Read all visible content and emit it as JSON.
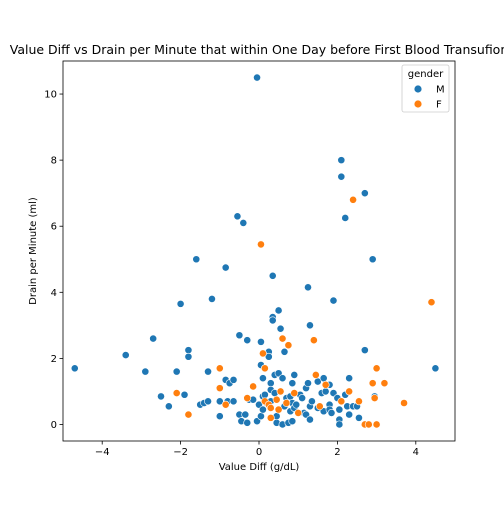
{
  "chart_data": {
    "type": "scatter",
    "title": "Value Diff vs Drain per Minute that within One Day before First Blood Transufion",
    "xlabel": "Value Diff (g/dL)",
    "ylabel": "Drain per Minute (ml)",
    "xlim": [
      -5.0,
      5.0
    ],
    "ylim": [
      -0.5,
      11.0
    ],
    "xticks": [
      -4,
      -2,
      0,
      2,
      4
    ],
    "yticks": [
      0,
      2,
      4,
      6,
      8,
      10
    ],
    "grid": false,
    "legend": {
      "title": "gender",
      "placement": "top-right"
    },
    "series": [
      {
        "name": "M",
        "color": "#1f77b4",
        "points": [
          [
            -4.7,
            1.7
          ],
          [
            -3.4,
            2.1
          ],
          [
            -2.9,
            1.6
          ],
          [
            -2.7,
            2.6
          ],
          [
            -2.5,
            0.85
          ],
          [
            -2.3,
            0.55
          ],
          [
            -2.1,
            1.6
          ],
          [
            -2.0,
            3.65
          ],
          [
            -1.9,
            0.9
          ],
          [
            -1.8,
            2.25
          ],
          [
            -1.8,
            2.05
          ],
          [
            -1.6,
            5.0
          ],
          [
            -1.5,
            0.6
          ],
          [
            -1.4,
            0.65
          ],
          [
            -1.3,
            0.7
          ],
          [
            -1.3,
            1.6
          ],
          [
            -1.2,
            3.8
          ],
          [
            -1.0,
            0.7
          ],
          [
            -1.0,
            0.25
          ],
          [
            -0.85,
            4.75
          ],
          [
            -0.85,
            1.35
          ],
          [
            -0.8,
            0.7
          ],
          [
            -0.75,
            1.25
          ],
          [
            -0.65,
            1.35
          ],
          [
            -0.65,
            0.7
          ],
          [
            -0.55,
            6.3
          ],
          [
            -0.5,
            2.7
          ],
          [
            -0.5,
            0.3
          ],
          [
            -0.45,
            0.1
          ],
          [
            -0.4,
            6.1
          ],
          [
            -0.35,
            0.3
          ],
          [
            -0.3,
            2.55
          ],
          [
            -0.3,
            0.05
          ],
          [
            -0.25,
            0.75
          ],
          [
            -0.15,
            0.75
          ],
          [
            -0.05,
            10.5
          ],
          [
            -0.05,
            0.1
          ],
          [
            0.0,
            0.6
          ],
          [
            0.05,
            2.5
          ],
          [
            0.05,
            1.8
          ],
          [
            0.05,
            0.25
          ],
          [
            0.1,
            1.4
          ],
          [
            0.1,
            0.85
          ],
          [
            0.1,
            0.45
          ],
          [
            0.15,
            0.9
          ],
          [
            0.2,
            0.65
          ],
          [
            0.25,
            2.2
          ],
          [
            0.25,
            2.05
          ],
          [
            0.3,
            1.25
          ],
          [
            0.3,
            1.05
          ],
          [
            0.3,
            0.7
          ],
          [
            0.35,
            4.5
          ],
          [
            0.35,
            3.25
          ],
          [
            0.35,
            3.15
          ],
          [
            0.4,
            1.5
          ],
          [
            0.4,
            0.95
          ],
          [
            0.45,
            0.05
          ],
          [
            0.45,
            0.25
          ],
          [
            0.5,
            3.45
          ],
          [
            0.5,
            1.55
          ],
          [
            0.55,
            2.9
          ],
          [
            0.6,
            0.0
          ],
          [
            0.6,
            1.4
          ],
          [
            0.65,
            2.2
          ],
          [
            0.65,
            0.55
          ],
          [
            0.7,
            0.8
          ],
          [
            0.75,
            0.05
          ],
          [
            0.8,
            0.85
          ],
          [
            0.8,
            0.4
          ],
          [
            0.85,
            0.65
          ],
          [
            0.85,
            1.25
          ],
          [
            0.85,
            0.1
          ],
          [
            0.9,
            1.5
          ],
          [
            0.9,
            0.5
          ],
          [
            0.95,
            0.6
          ],
          [
            1.05,
            0.9
          ],
          [
            1.1,
            0.8
          ],
          [
            1.15,
            0.35
          ],
          [
            1.2,
            1.1
          ],
          [
            1.2,
            0.3
          ],
          [
            1.25,
            4.15
          ],
          [
            1.25,
            1.25
          ],
          [
            1.3,
            3.0
          ],
          [
            1.3,
            0.55
          ],
          [
            1.3,
            0.15
          ],
          [
            1.35,
            0.7
          ],
          [
            1.5,
            1.3
          ],
          [
            1.5,
            0.5
          ],
          [
            1.6,
            0.95
          ],
          [
            1.65,
            1.4
          ],
          [
            1.65,
            0.4
          ],
          [
            1.7,
            1.0
          ],
          [
            1.8,
            1.2
          ],
          [
            1.8,
            0.6
          ],
          [
            1.8,
            0.45
          ],
          [
            1.85,
            0.35
          ],
          [
            1.9,
            3.75
          ],
          [
            1.9,
            0.95
          ],
          [
            2.0,
            0.8
          ],
          [
            2.05,
            0.45
          ],
          [
            2.05,
            0.15
          ],
          [
            2.05,
            0.0
          ],
          [
            2.1,
            8.0
          ],
          [
            2.1,
            7.5
          ],
          [
            2.2,
            6.25
          ],
          [
            2.2,
            0.9
          ],
          [
            2.25,
            0.55
          ],
          [
            2.3,
            1.4
          ],
          [
            2.3,
            0.3
          ],
          [
            2.4,
            0.55
          ],
          [
            2.5,
            0.55
          ],
          [
            2.55,
            0.2
          ],
          [
            2.7,
            7.0
          ],
          [
            2.7,
            2.25
          ],
          [
            2.9,
            5.0
          ],
          [
            2.95,
            0.85
          ],
          [
            4.5,
            1.7
          ]
        ]
      },
      {
        "name": "F",
        "color": "#ff7f0e",
        "points": [
          [
            -2.1,
            0.95
          ],
          [
            -1.8,
            0.3
          ],
          [
            -1.0,
            1.1
          ],
          [
            -1.0,
            1.7
          ],
          [
            -0.85,
            0.6
          ],
          [
            -0.3,
            0.8
          ],
          [
            -0.15,
            1.15
          ],
          [
            0.05,
            5.45
          ],
          [
            0.1,
            2.15
          ],
          [
            0.15,
            1.7
          ],
          [
            0.15,
            0.7
          ],
          [
            0.25,
            0.6
          ],
          [
            0.3,
            0.5
          ],
          [
            0.3,
            0.2
          ],
          [
            0.45,
            0.75
          ],
          [
            0.5,
            0.45
          ],
          [
            0.55,
            1.0
          ],
          [
            0.6,
            2.6
          ],
          [
            0.7,
            0.65
          ],
          [
            0.75,
            2.4
          ],
          [
            0.9,
            0.95
          ],
          [
            1.0,
            0.35
          ],
          [
            1.4,
            2.55
          ],
          [
            1.45,
            1.5
          ],
          [
            1.55,
            0.55
          ],
          [
            1.7,
            1.2
          ],
          [
            2.1,
            0.7
          ],
          [
            2.3,
            1.0
          ],
          [
            2.4,
            6.8
          ],
          [
            2.55,
            0.7
          ],
          [
            2.7,
            0.0
          ],
          [
            2.8,
            0.0
          ],
          [
            2.9,
            1.25
          ],
          [
            2.95,
            0.8
          ],
          [
            3.0,
            0.0
          ],
          [
            3.0,
            1.7
          ],
          [
            3.2,
            1.25
          ],
          [
            3.7,
            0.65
          ],
          [
            4.4,
            3.7
          ]
        ]
      }
    ]
  }
}
